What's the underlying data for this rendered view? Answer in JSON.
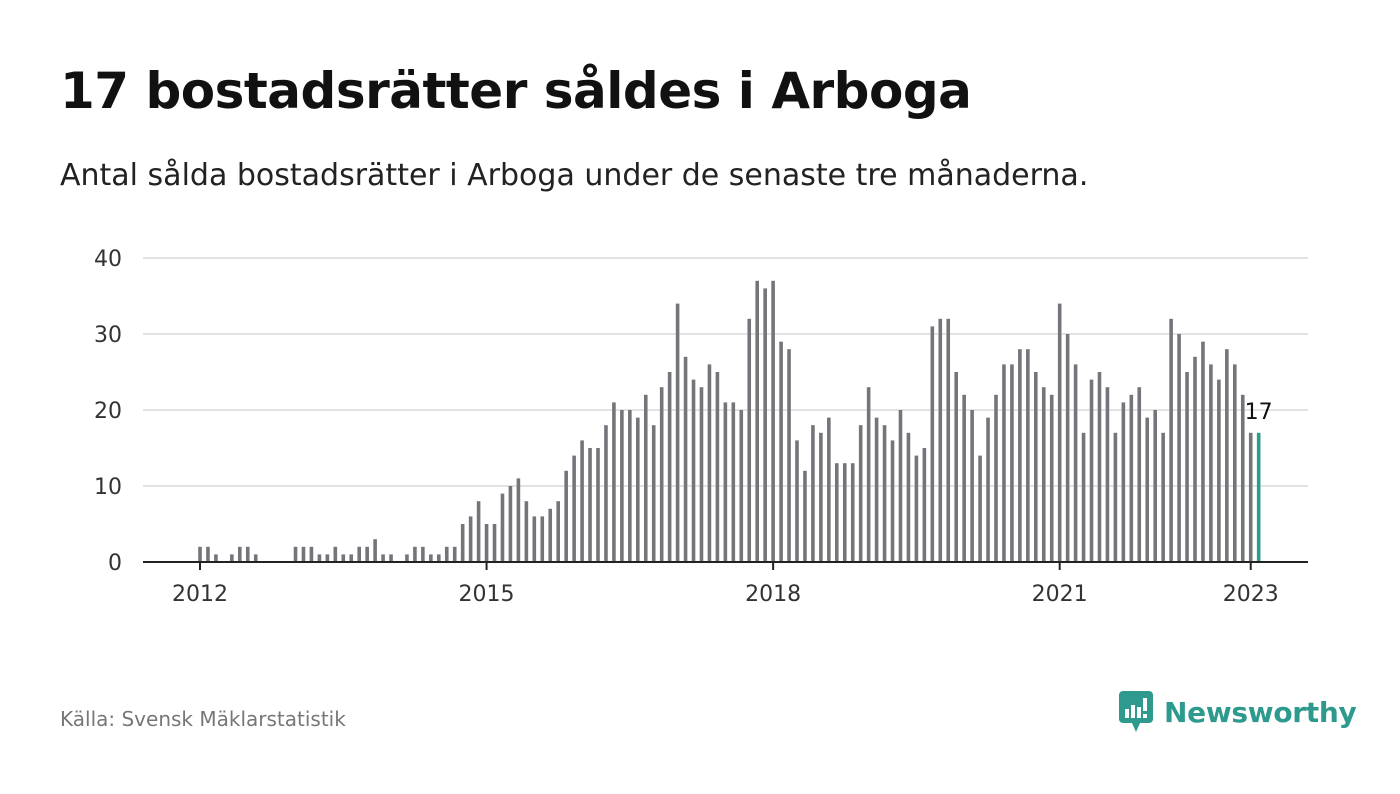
{
  "header": {
    "title": "17 bostadsrätter såldes i Arboga",
    "subtitle": "Antal sålda bostadsrätter i Arboga under de senaste tre månaderna."
  },
  "footer": {
    "source": "Källa: Svensk Mäklarstatistik",
    "brand": "Newsworthy",
    "brand_icon": "bar-chart-speech-bubble-icon"
  },
  "colors": {
    "bar": "#74747a",
    "highlight": "#2a9d8f",
    "grid": "#d9d9d9",
    "axis": "#222222",
    "brand": "#2e9a8e"
  },
  "chart_data": {
    "type": "bar",
    "x_start": "2012-01",
    "x_ticks": [
      "2012",
      "2015",
      "2018",
      "2021",
      "2023"
    ],
    "y_ticks": [
      0,
      10,
      20,
      30,
      40
    ],
    "ylim": [
      0,
      40
    ],
    "grid": true,
    "highlight_last": true,
    "last_value_label": "17",
    "values": [
      2,
      2,
      1,
      0,
      1,
      2,
      2,
      1,
      0,
      0,
      0,
      0,
      2,
      2,
      2,
      1,
      1,
      2,
      1,
      1,
      2,
      2,
      3,
      1,
      1,
      0,
      1,
      2,
      2,
      1,
      1,
      2,
      2,
      5,
      6,
      8,
      5,
      5,
      9,
      10,
      11,
      8,
      6,
      6,
      7,
      8,
      12,
      14,
      16,
      15,
      15,
      18,
      21,
      20,
      20,
      19,
      22,
      18,
      23,
      25,
      34,
      27,
      24,
      23,
      26,
      25,
      21,
      21,
      20,
      32,
      37,
      36,
      37,
      29,
      28,
      16,
      12,
      18,
      17,
      19,
      13,
      13,
      13,
      18,
      23,
      19,
      18,
      16,
      20,
      17,
      14,
      15,
      31,
      32,
      32,
      25,
      22,
      20,
      14,
      19,
      22,
      26,
      26,
      28,
      28,
      25,
      23,
      22,
      34,
      30,
      26,
      17,
      24,
      25,
      23,
      17,
      21,
      22,
      23,
      19,
      20,
      17,
      32,
      30,
      25,
      27,
      29,
      26,
      24,
      28,
      26,
      22,
      17,
      17
    ]
  }
}
